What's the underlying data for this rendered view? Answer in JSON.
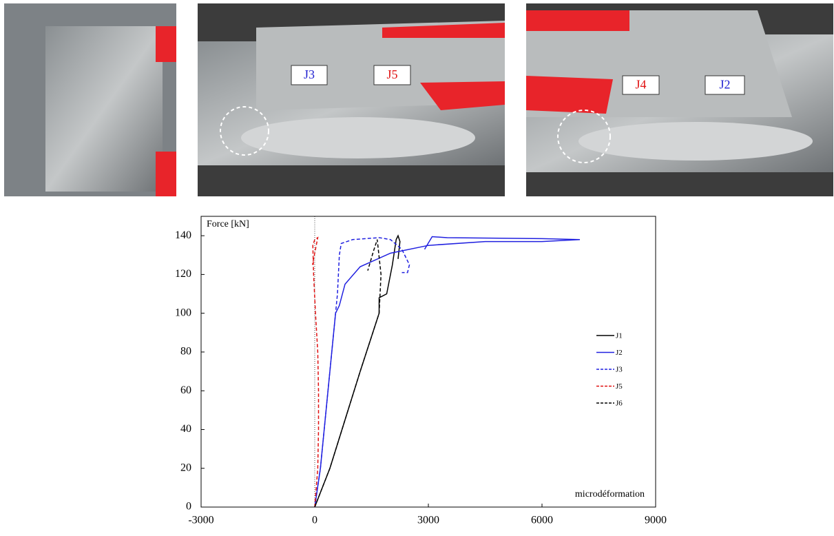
{
  "photo_labels": [
    {
      "text": "J3",
      "color": "#1f1fd0"
    },
    {
      "text": "J5",
      "color": "#e01010"
    },
    {
      "text": "J4",
      "color": "#e01010"
    },
    {
      "text": "J2",
      "color": "#1f1fd0"
    }
  ],
  "chart_data": {
    "type": "line",
    "ylabel": "Force [kN]",
    "xlabel": "microdéformation",
    "xlim": [
      -3000,
      9000
    ],
    "xticks": [
      -3000,
      0,
      3000,
      6000,
      9000
    ],
    "ylim": [
      0,
      150
    ],
    "yticks": [
      0,
      20,
      40,
      60,
      80,
      100,
      120,
      140
    ],
    "series": [
      {
        "name": "J1",
        "color": "#000000",
        "dash": false,
        "x": [
          0,
          400,
          800,
          1200,
          1500,
          1700,
          1700,
          1900,
          2050,
          2150,
          2200,
          2250,
          2200
        ],
        "values": [
          0,
          20,
          45,
          70,
          88,
          100,
          108,
          110,
          125,
          138,
          140,
          137,
          128
        ]
      },
      {
        "name": "J2",
        "color": "#1f1fe0",
        "dash": false,
        "x": [
          0,
          150,
          250,
          350,
          450,
          550,
          650,
          800,
          1200,
          2000,
          3000,
          4500,
          6000,
          7000,
          6000,
          3500,
          3100,
          2900
        ],
        "values": [
          0,
          20,
          40,
          60,
          80,
          100,
          104,
          115,
          124,
          131,
          135,
          137,
          137,
          138,
          138.5,
          139,
          139.5,
          133
        ]
      },
      {
        "name": "J3",
        "color": "#1f1fe0",
        "dash": true,
        "x": [
          0,
          150,
          250,
          350,
          450,
          550,
          600,
          650,
          700,
          1000,
          1700,
          2000,
          2300,
          2500,
          2450,
          2300
        ],
        "values": [
          0,
          20,
          40,
          60,
          80,
          100,
          110,
          130,
          136,
          138,
          139,
          138,
          133,
          125,
          121,
          121
        ]
      },
      {
        "name": "J5",
        "color": "#e01010",
        "dash": true,
        "x": [
          0,
          80,
          100,
          100,
          80,
          20,
          -30,
          -50,
          0,
          80,
          -60
        ],
        "values": [
          0,
          20,
          40,
          60,
          80,
          100,
          120,
          135,
          138,
          139,
          125
        ]
      },
      {
        "name": "J6",
        "color": "#000000",
        "dash": true,
        "x": [
          0,
          400,
          800,
          1200,
          1500,
          1700,
          1750,
          1650,
          1550,
          1400
        ],
        "values": [
          0,
          20,
          45,
          70,
          88,
          100,
          120,
          138,
          132,
          122
        ]
      }
    ]
  }
}
